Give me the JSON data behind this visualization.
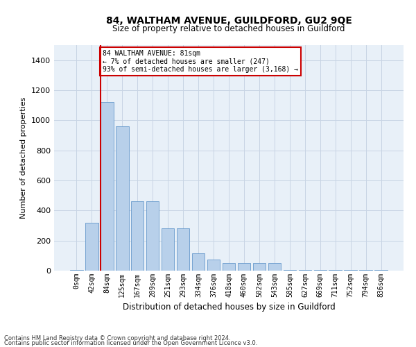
{
  "title": "84, WALTHAM AVENUE, GUILDFORD, GU2 9QE",
  "subtitle": "Size of property relative to detached houses in Guildford",
  "xlabel": "Distribution of detached houses by size in Guildford",
  "ylabel": "Number of detached properties",
  "footnote1": "Contains HM Land Registry data © Crown copyright and database right 2024.",
  "footnote2": "Contains public sector information licensed under the Open Government Licence v3.0.",
  "annotation_title": "84 WALTHAM AVENUE: 81sqm",
  "annotation_line2": "← 7% of detached houses are smaller (247)",
  "annotation_line3": "93% of semi-detached houses are larger (3,168) →",
  "bar_color": "#b8d0ea",
  "bar_edge_color": "#6699cc",
  "highlight_color": "#cc0000",
  "background_color": "#e8f0f8",
  "grid_color": "#d0d8e8",
  "categories": [
    "0sqm",
    "42sqm",
    "84sqm",
    "125sqm",
    "167sqm",
    "209sqm",
    "251sqm",
    "293sqm",
    "334sqm",
    "376sqm",
    "418sqm",
    "460sqm",
    "502sqm",
    "543sqm",
    "585sqm",
    "627sqm",
    "669sqm",
    "711sqm",
    "752sqm",
    "794sqm",
    "836sqm"
  ],
  "values": [
    3,
    320,
    1120,
    960,
    460,
    460,
    280,
    280,
    115,
    75,
    50,
    50,
    50,
    50,
    3,
    3,
    3,
    3,
    3,
    3,
    3
  ],
  "highlight_bar_index": 2,
  "ylim": [
    0,
    1500
  ],
  "yticks": [
    0,
    200,
    400,
    600,
    800,
    1000,
    1200,
    1400
  ]
}
